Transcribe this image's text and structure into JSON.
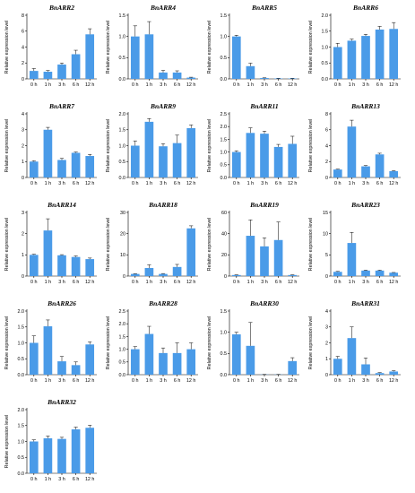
{
  "figure": {
    "ylabel": "Relative expression level",
    "categories": [
      "0 h",
      "1 h",
      "3 h",
      "6 h",
      "12 h"
    ]
  },
  "chart_data": [
    {
      "type": "bar",
      "title": "BnARR2",
      "categories": [
        "0 h",
        "1 h",
        "3 h",
        "6 h",
        "12 h"
      ],
      "ylabel": "Relative expression level",
      "ylim": [
        0,
        8
      ],
      "yticks": [
        0,
        2,
        4,
        6,
        8
      ],
      "ytick_labels": [
        "0",
        "2",
        "4",
        "6",
        "8"
      ],
      "values": [
        1.0,
        0.9,
        1.8,
        3.1,
        5.6
      ],
      "errors": [
        0.3,
        0.15,
        0.2,
        0.5,
        0.7
      ]
    },
    {
      "type": "bar",
      "title": "BnARR4",
      "categories": [
        "0 h",
        "1 h",
        "3 h",
        "6 h",
        "12 h"
      ],
      "ylabel": "Relative expression level",
      "ylim": [
        0,
        1.5
      ],
      "yticks": [
        0,
        0.5,
        1.0,
        1.5
      ],
      "ytick_labels": [
        "0.0",
        "0.5",
        "1.0",
        "1.5"
      ],
      "values": [
        1.0,
        1.05,
        0.15,
        0.15,
        0.03
      ],
      "errors": [
        0.25,
        0.3,
        0.05,
        0.04,
        0.01
      ]
    },
    {
      "type": "bar",
      "title": "BnARR5",
      "categories": [
        "0 h",
        "1 h",
        "3 h",
        "6 h",
        "12 h"
      ],
      "ylabel": "Relative expression level",
      "ylim": [
        0,
        1.5
      ],
      "yticks": [
        0,
        0.5,
        1.0,
        1.5
      ],
      "ytick_labels": [
        "0.0",
        "0.5",
        "1.0",
        "1.5"
      ],
      "values": [
        1.0,
        0.3,
        0.02,
        0.01,
        0.01
      ],
      "errors": [
        0.03,
        0.07,
        0.005,
        0.005,
        0.005
      ]
    },
    {
      "type": "bar",
      "title": "BnARR6",
      "categories": [
        "0 h",
        "1 h",
        "3 h",
        "6 h",
        "12 h"
      ],
      "ylabel": "Relative expression level",
      "ylim": [
        0,
        2.0
      ],
      "yticks": [
        0,
        0.5,
        1.0,
        1.5,
        2.0
      ],
      "ytick_labels": [
        "0.0",
        "0.5",
        "1.0",
        "1.5",
        "2.0"
      ],
      "values": [
        1.0,
        1.2,
        1.35,
        1.55,
        1.57
      ],
      "errors": [
        0.12,
        0.05,
        0.05,
        0.1,
        0.2
      ]
    },
    {
      "type": "bar",
      "title": "BnARR7",
      "categories": [
        "0 h",
        "1 h",
        "3 h",
        "6 h",
        "12 h"
      ],
      "ylabel": "Relative expression level",
      "ylim": [
        0,
        4
      ],
      "yticks": [
        0,
        1,
        2,
        3,
        4
      ],
      "ytick_labels": [
        "0",
        "1",
        "2",
        "3",
        "4"
      ],
      "values": [
        1.0,
        3.0,
        1.1,
        1.55,
        1.35
      ],
      "errors": [
        0.05,
        0.15,
        0.1,
        0.05,
        0.1
      ]
    },
    {
      "type": "bar",
      "title": "BnARR9",
      "categories": [
        "0 h",
        "1 h",
        "3 h",
        "6 h",
        "12 h"
      ],
      "ylabel": "Relative expression level",
      "ylim": [
        0,
        2.0
      ],
      "yticks": [
        0,
        0.5,
        1.0,
        1.5,
        2.0
      ],
      "ytick_labels": [
        "0.0",
        "0.5",
        "1.0",
        "1.5",
        "2.0"
      ],
      "values": [
        1.0,
        1.75,
        0.98,
        1.08,
        1.55
      ],
      "errors": [
        0.15,
        0.1,
        0.08,
        0.25,
        0.1
      ]
    },
    {
      "type": "bar",
      "title": "BnARR11",
      "categories": [
        "0 h",
        "1 h",
        "3 h",
        "6 h",
        "12 h"
      ],
      "ylabel": "Relative expression level",
      "ylim": [
        0,
        2.5
      ],
      "yticks": [
        0,
        0.5,
        1.0,
        1.5,
        2.0,
        2.5
      ],
      "ytick_labels": [
        "0.0",
        "0.5",
        "1.0",
        "1.5",
        "2.0",
        "2.5"
      ],
      "values": [
        1.0,
        1.75,
        1.72,
        1.2,
        1.32
      ],
      "errors": [
        0.05,
        0.2,
        0.1,
        0.1,
        0.3
      ]
    },
    {
      "type": "bar",
      "title": "BnARR13",
      "categories": [
        "0 h",
        "1 h",
        "3 h",
        "6 h",
        "12 h"
      ],
      "ylabel": "Relative expression level",
      "ylim": [
        0,
        8
      ],
      "yticks": [
        0,
        2,
        4,
        6,
        8
      ],
      "ytick_labels": [
        "0",
        "2",
        "4",
        "6",
        "8"
      ],
      "values": [
        1.0,
        6.4,
        1.4,
        2.9,
        0.8
      ],
      "errors": [
        0.05,
        0.8,
        0.1,
        0.15,
        0.05
      ]
    },
    {
      "type": "bar",
      "title": "BnARR14",
      "categories": [
        "0 h",
        "1 h",
        "3 h",
        "6 h",
        "12 h"
      ],
      "ylabel": "Relative expression level",
      "ylim": [
        0,
        3
      ],
      "yticks": [
        0,
        1,
        2,
        3
      ],
      "ytick_labels": [
        "0",
        "1",
        "2",
        "3"
      ],
      "values": [
        1.0,
        2.15,
        0.98,
        0.9,
        0.8
      ],
      "errors": [
        0.03,
        0.55,
        0.03,
        0.05,
        0.05
      ]
    },
    {
      "type": "bar",
      "title": "BnARR18",
      "categories": [
        "0 h",
        "1 h",
        "3 h",
        "6 h",
        "12 h"
      ],
      "ylabel": "Relative expression level",
      "ylim": [
        0,
        30
      ],
      "yticks": [
        0,
        10,
        20,
        30
      ],
      "ytick_labels": [
        "0",
        "10",
        "20",
        "30"
      ],
      "values": [
        1.0,
        3.8,
        1.0,
        4.3,
        22.5
      ],
      "errors": [
        0.1,
        1.5,
        0.2,
        1.2,
        1.2
      ]
    },
    {
      "type": "bar",
      "title": "BnARR19",
      "categories": [
        "0 h",
        "1 h",
        "3 h",
        "6 h",
        "12 h"
      ],
      "ylabel": "Relative expression level",
      "ylim": [
        0,
        60
      ],
      "yticks": [
        0,
        20,
        40,
        60
      ],
      "ytick_labels": [
        "0",
        "20",
        "40",
        "60"
      ],
      "values": [
        1.0,
        38.0,
        28.0,
        34.0,
        1.0
      ],
      "errors": [
        0.2,
        15.0,
        8.0,
        17.0,
        0.2
      ]
    },
    {
      "type": "bar",
      "title": "BnARR23",
      "categories": [
        "0 h",
        "1 h",
        "3 h",
        "6 h",
        "12 h"
      ],
      "ylabel": "Relative expression level",
      "ylim": [
        0,
        15
      ],
      "yticks": [
        0,
        5,
        10,
        15
      ],
      "ytick_labels": [
        "0",
        "5",
        "10",
        "15"
      ],
      "values": [
        1.0,
        7.8,
        1.3,
        1.3,
        0.8
      ],
      "errors": [
        0.1,
        2.5,
        0.1,
        0.1,
        0.05
      ]
    },
    {
      "type": "bar",
      "title": "BnARR26",
      "categories": [
        "0 h",
        "1 h",
        "3 h",
        "6 h",
        "12 h"
      ],
      "ylabel": "Relative expression level",
      "ylim": [
        0,
        2.0
      ],
      "yticks": [
        0,
        0.5,
        1.0,
        1.5,
        2.0
      ],
      "ytick_labels": [
        "0.0",
        "0.5",
        "1.0",
        "1.5",
        "2.0"
      ],
      "values": [
        1.0,
        1.52,
        0.42,
        0.3,
        0.95
      ],
      "errors": [
        0.22,
        0.2,
        0.15,
        0.1,
        0.08
      ]
    },
    {
      "type": "bar",
      "title": "BnARR28",
      "categories": [
        "0 h",
        "1 h",
        "3 h",
        "6 h",
        "12 h"
      ],
      "ylabel": "Relative expression level",
      "ylim": [
        0,
        2.5
      ],
      "yticks": [
        0,
        0.5,
        1.0,
        1.5,
        2.0,
        2.5
      ],
      "ytick_labels": [
        "0.0",
        "0.5",
        "1.0",
        "1.5",
        "2.0",
        "2.5"
      ],
      "values": [
        1.0,
        1.6,
        0.85,
        0.85,
        1.0
      ],
      "errors": [
        0.1,
        0.3,
        0.2,
        0.4,
        0.25
      ]
    },
    {
      "type": "bar",
      "title": "BnARR30",
      "categories": [
        "0 h",
        "1 h",
        "3 h",
        "6 h",
        "12 h"
      ],
      "ylabel": "Relative expression level",
      "ylim": [
        0,
        1.5
      ],
      "yticks": [
        0,
        0.5,
        1.0,
        1.5
      ],
      "ytick_labels": [
        "0.0",
        "0.5",
        "1.0",
        "1.5"
      ],
      "values": [
        0.95,
        0.68,
        0.005,
        0.005,
        0.32
      ],
      "errors": [
        0.05,
        0.55,
        0.002,
        0.002,
        0.08
      ]
    },
    {
      "type": "bar",
      "title": "BnARR31",
      "categories": [
        "0 h",
        "1 h",
        "3 h",
        "6 h",
        "12 h"
      ],
      "ylabel": "Relative expression level",
      "ylim": [
        0,
        4
      ],
      "yticks": [
        0,
        1,
        2,
        3,
        4
      ],
      "ytick_labels": [
        "0",
        "1",
        "2",
        "3",
        "4"
      ],
      "values": [
        1.0,
        2.3,
        0.65,
        0.1,
        0.2
      ],
      "errors": [
        0.15,
        0.7,
        0.4,
        0.03,
        0.05
      ]
    },
    {
      "type": "bar",
      "title": "BnARR32",
      "categories": [
        "0 h",
        "1 h",
        "3 h",
        "6 h",
        "12 h"
      ],
      "ylabel": "Relative expression level",
      "ylim": [
        0,
        2.0
      ],
      "yticks": [
        0,
        0.5,
        1.0,
        1.5,
        2.0
      ],
      "ytick_labels": [
        "0.0",
        "0.5",
        "1.0",
        "1.5",
        "2.0"
      ],
      "values": [
        1.0,
        1.1,
        1.08,
        1.38,
        1.43
      ],
      "errors": [
        0.05,
        0.07,
        0.05,
        0.07,
        0.08
      ]
    }
  ],
  "colors": {
    "bar": "#4a9be8",
    "axis": "#000000"
  }
}
